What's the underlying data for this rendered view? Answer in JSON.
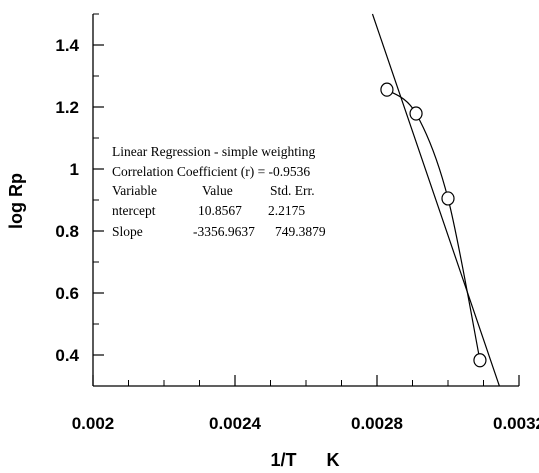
{
  "chart_data": {
    "type": "scatter",
    "title": "",
    "xlabel": "1/T      K",
    "ylabel": "log Rp",
    "xlim": [
      0.002,
      0.0032
    ],
    "ylim": [
      0.3,
      1.5
    ],
    "x_ticks": [
      {
        "value": 0.002,
        "label": "0.002"
      },
      {
        "value": 0.0024,
        "label": "0.0024"
      },
      {
        "value": 0.0028,
        "label": "0.0028"
      },
      {
        "value": 0.0032,
        "label": "0.0032"
      }
    ],
    "y_ticks": [
      {
        "value": 0.4,
        "label": "0.4"
      },
      {
        "value": 0.6,
        "label": "0.6"
      },
      {
        "value": 0.8,
        "label": "0.8"
      },
      {
        "value": 1.0,
        "label": "1"
      },
      {
        "value": 1.2,
        "label": "1.2"
      },
      {
        "value": 1.4,
        "label": "1.4"
      }
    ],
    "x_minor_step": 0.0001,
    "y_minor_step": 0.1,
    "points": [
      {
        "x": 0.002828,
        "y": 1.256
      },
      {
        "x": 0.00291,
        "y": 1.179
      },
      {
        "x": 0.003,
        "y": 0.905
      },
      {
        "x": 0.00309,
        "y": 0.383
      }
    ],
    "regression_line": {
      "intercept": 10.8567,
      "slope": -3356.9637
    },
    "smooth_curve": true,
    "annotation": {
      "lines": [
        "Linear Regression  - simple weighting",
        "Correlation Coefficient (r) = -0.9536"
      ],
      "table": {
        "headers": [
          "Variable",
          "Value",
          "Std. Err."
        ],
        "rows": [
          [
            "ntercept",
            "10.8567",
            "2.2175"
          ],
          [
            "Slope",
            "-3356.9637",
            "749.3879"
          ]
        ]
      }
    },
    "grid": false,
    "legend": "none",
    "colors": {
      "marks": "#000000",
      "background": "#ffffff"
    }
  }
}
